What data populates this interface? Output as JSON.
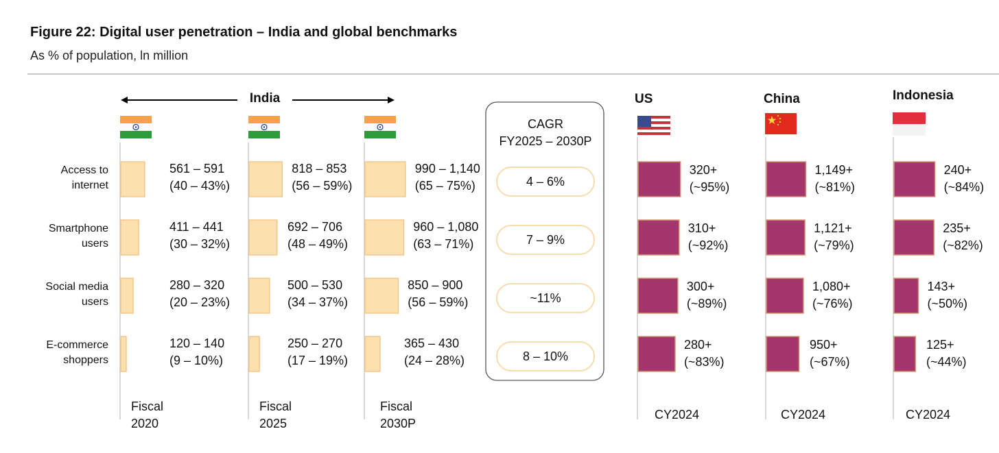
{
  "title": "Figure 22: Digital user penetration – India and global benchmarks",
  "subtitle": "As % of population, ln million",
  "chart_data": {
    "type": "bar",
    "orientation": "horizontal",
    "categories": [
      {
        "line1": "Access to",
        "line2": "internet"
      },
      {
        "line1": "Smartphone",
        "line2": "users"
      },
      {
        "line1": "Social media",
        "line2": "users"
      },
      {
        "line1": "E-commerce",
        "line2": "shoppers"
      }
    ],
    "india_label": "India",
    "india_panels": [
      {
        "period_line1": "Fiscal",
        "period_line2": "2020",
        "values": [
          41.5,
          31,
          21.5,
          9.5
        ],
        "labels": [
          [
            "561 – 591",
            "(40 – 43%)"
          ],
          [
            "411 – 441",
            "(30 – 32%)"
          ],
          [
            "280 – 320",
            "(20 – 23%)"
          ],
          [
            "120 – 140",
            "(9 – 10%)"
          ]
        ]
      },
      {
        "period_line1": "Fiscal",
        "period_line2": "2025",
        "values": [
          57.5,
          48.5,
          35.5,
          18
        ],
        "labels": [
          [
            "818 – 853",
            "(56 – 59%)"
          ],
          [
            "692 – 706",
            "(48 – 49%)"
          ],
          [
            "500 – 530",
            "(34 – 37%)"
          ],
          [
            "250 – 270",
            "(17 – 19%)"
          ]
        ]
      },
      {
        "period_line1": "Fiscal",
        "period_line2": "2030P",
        "values": [
          70,
          67,
          57.5,
          26
        ],
        "labels": [
          [
            "990 – 1,140",
            "(65 – 75%)"
          ],
          [
            "960 – 1,080",
            "(63 – 71%)"
          ],
          [
            "850 – 900",
            "(56 – 59%)"
          ],
          [
            "365 – 430",
            "(24 – 28%)"
          ]
        ]
      }
    ],
    "cagr": {
      "title_line1": "CAGR",
      "title_line2": "FY2025  –  2030P",
      "values": [
        "4 – 6%",
        "7 – 9%",
        "~11%",
        "8 – 10%"
      ]
    },
    "benchmarks": [
      {
        "country": "US",
        "period": "CY2024",
        "values": [
          95,
          92,
          89,
          83
        ],
        "labels": [
          [
            "320+",
            "(~95%)"
          ],
          [
            "310+",
            "(~92%)"
          ],
          [
            "300+",
            "(~89%)"
          ],
          [
            "280+",
            "(~83%)"
          ]
        ]
      },
      {
        "country": "China",
        "period": "CY2024",
        "values": [
          81,
          79,
          76,
          67
        ],
        "labels": [
          [
            "1,149+",
            "(~81%)"
          ],
          [
            "1,121+",
            "(~79%)"
          ],
          [
            "1,080+",
            "(~76%)"
          ],
          [
            "950+",
            "(~67%)"
          ]
        ]
      },
      {
        "country": "Indonesia",
        "period": "CY2024",
        "values": [
          84,
          82,
          50,
          44
        ],
        "labels": [
          [
            "240+",
            "(~84%)"
          ],
          [
            "235+",
            "(~82%)"
          ],
          [
            "143+",
            "(~50%)"
          ],
          [
            "125+",
            "(~44%)"
          ]
        ]
      }
    ],
    "colors": {
      "india_bar": "#fde0b0",
      "india_bar_border": "#f3c78a",
      "benchmark_bar": "#a3376b",
      "benchmark_bar_border": "#d39470",
      "pill_border": "#f7ddae",
      "axis": "#cccccc",
      "india_saffron": "#f6a24c",
      "india_green": "#2e9b3a",
      "india_chakra": "#1d3c8f",
      "us_red": "#c4333c",
      "us_blue": "#3b4a8c",
      "china_red": "#e22a1f",
      "china_star": "#ffd83a",
      "indonesia_red": "#e0303e",
      "indonesia_white": "#f3f3f3"
    }
  }
}
